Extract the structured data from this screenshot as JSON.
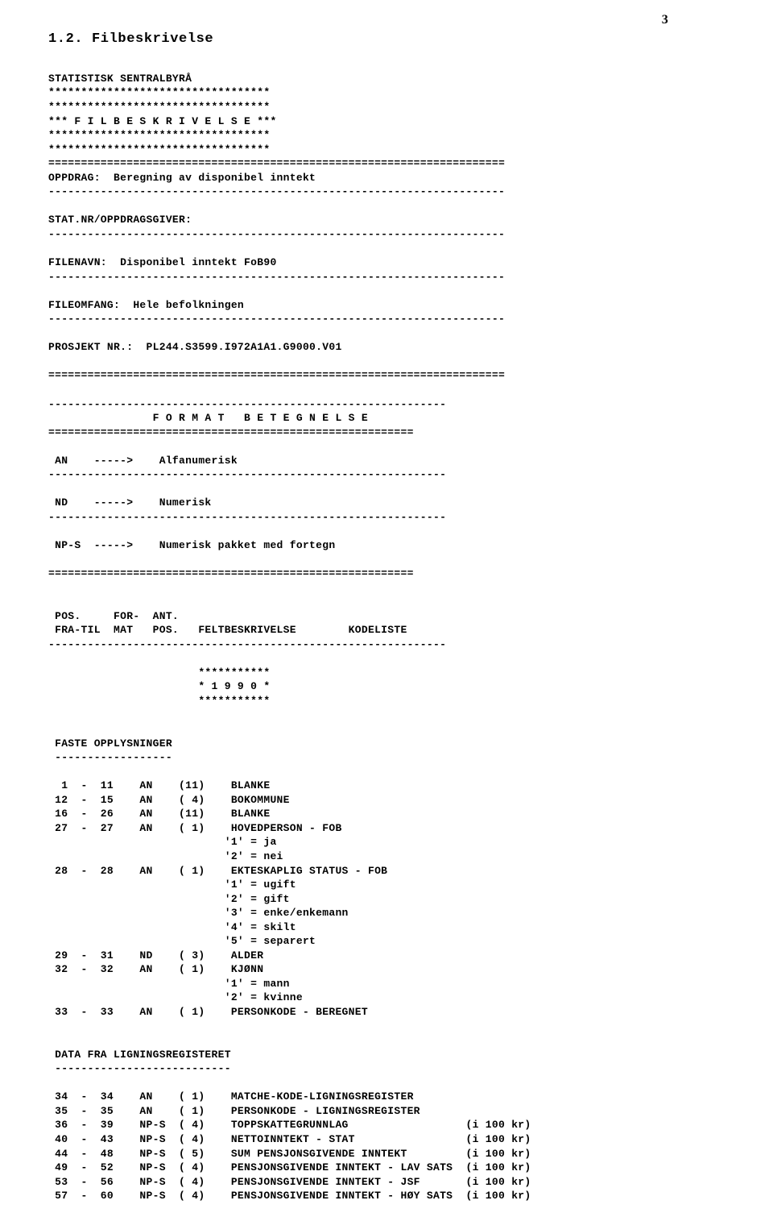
{
  "pageNumber": "3",
  "heading": "1.2. Filbeskrivelse",
  "header": {
    "org": "STATISTISK SENTRALBYRÅ",
    "starLine": "**********************************",
    "banner": "*** F I L B E S K R I V E L S E ***",
    "eqLine": "======================================================================",
    "dashLine": "----------------------------------------------------------------------",
    "oppdragLabel": "OPPDRAG:",
    "oppdragValue": "Beregning av disponibel inntekt",
    "statnrLabel": "STAT.NR/OPPDRAGSGIVER:",
    "filenavnLabel": "FILENAVN:",
    "filenavnValue": "Disponibel inntekt FoB90",
    "fileomfangLabel": "FILEOMFANG:",
    "fileomfangValue": "Hele befolkningen",
    "prosjektLabel": "PROSJEKT NR.:",
    "prosjektValue": "PL244.S3599.I972A1A1.G9000.V01"
  },
  "formatSection": {
    "title": "F O R M A T   B E T E G N E L S E",
    "dashMid": "-------------------------------------------------------------",
    "eqMid": "========================================================",
    "items": [
      {
        "code": "AN",
        "arrow": "----->",
        "desc": "Alfanumerisk"
      },
      {
        "code": "ND",
        "arrow": "----->",
        "desc": "Numerisk"
      },
      {
        "code": "NP-S",
        "arrow": "----->",
        "desc": "Numerisk pakket med fortegn"
      }
    ]
  },
  "tableHeader": {
    "l1": "POS.     FOR-  ANT.",
    "l2": "FRA-TIL  MAT   POS.   FELTBESKRIVELSE        KODELISTE"
  },
  "yearBox": {
    "stars": "***********",
    "year": "* 1 9 9 0 *"
  },
  "sections": [
    {
      "title": "FASTE OPPLYSNINGER",
      "underline": "------------------",
      "rows": [
        {
          "from": "1",
          "to": "11",
          "fmt": "AN",
          "len": "(11)",
          "desc": "BLANKE",
          "note": ""
        },
        {
          "from": "12",
          "to": "15",
          "fmt": "AN",
          "len": "( 4)",
          "desc": "BOKOMMUNE",
          "note": ""
        },
        {
          "from": "16",
          "to": "26",
          "fmt": "AN",
          "len": "(11)",
          "desc": "BLANKE",
          "note": ""
        },
        {
          "from": "27",
          "to": "27",
          "fmt": "AN",
          "len": "( 1)",
          "desc": "HOVEDPERSON - FOB",
          "note": ""
        },
        {
          "cont": true,
          "desc": "'1' = ja"
        },
        {
          "cont": true,
          "desc": "'2' = nei"
        },
        {
          "from": "28",
          "to": "28",
          "fmt": "AN",
          "len": "( 1)",
          "desc": "EKTESKAPLIG STATUS - FOB",
          "note": ""
        },
        {
          "cont": true,
          "desc": "'1' = ugift"
        },
        {
          "cont": true,
          "desc": "'2' = gift"
        },
        {
          "cont": true,
          "desc": "'3' = enke/enkemann"
        },
        {
          "cont": true,
          "desc": "'4' = skilt"
        },
        {
          "cont": true,
          "desc": "'5' = separert"
        },
        {
          "from": "29",
          "to": "31",
          "fmt": "ND",
          "len": "( 3)",
          "desc": "ALDER",
          "note": ""
        },
        {
          "from": "32",
          "to": "32",
          "fmt": "AN",
          "len": "( 1)",
          "desc": "KJØNN",
          "note": ""
        },
        {
          "cont": true,
          "desc": "'1' = mann"
        },
        {
          "cont": true,
          "desc": "'2' = kvinne"
        },
        {
          "from": "33",
          "to": "33",
          "fmt": "AN",
          "len": "( 1)",
          "desc": "PERSONKODE - BEREGNET",
          "note": ""
        }
      ]
    },
    {
      "title": "DATA FRA LIGNINGSREGISTERET",
      "underline": "---------------------------",
      "rows": [
        {
          "from": "34",
          "to": "34",
          "fmt": "AN",
          "len": "( 1)",
          "desc": "MATCHE-KODE-LIGNINGSREGISTER",
          "note": ""
        },
        {
          "from": "35",
          "to": "35",
          "fmt": "AN",
          "len": "( 1)",
          "desc": "PERSONKODE - LIGNINGSREGISTER",
          "note": ""
        },
        {
          "from": "36",
          "to": "39",
          "fmt": "NP-S",
          "len": "( 4)",
          "desc": "TOPPSKATTEGRUNNLAG",
          "note": "(i 100 kr)"
        },
        {
          "from": "40",
          "to": "43",
          "fmt": "NP-S",
          "len": "( 4)",
          "desc": "NETTOINNTEKT - STAT",
          "note": "(i 100 kr)"
        },
        {
          "from": "44",
          "to": "48",
          "fmt": "NP-S",
          "len": "( 5)",
          "desc": "SUM PENSJONSGIVENDE INNTEKT",
          "note": "(i 100 kr)"
        },
        {
          "from": "49",
          "to": "52",
          "fmt": "NP-S",
          "len": "( 4)",
          "desc": "PENSJONSGIVENDE INNTEKT - LAV SATS",
          "note": "(i 100 kr)"
        },
        {
          "from": "53",
          "to": "56",
          "fmt": "NP-S",
          "len": "( 4)",
          "desc": "PENSJONSGIVENDE INNTEKT - JSF",
          "note": "(i 100 kr)"
        },
        {
          "from": "57",
          "to": "60",
          "fmt": "NP-S",
          "len": "( 4)",
          "desc": "PENSJONSGIVENDE INNTEKT - HØY SATS",
          "note": "(i 100 kr)"
        }
      ]
    }
  ]
}
